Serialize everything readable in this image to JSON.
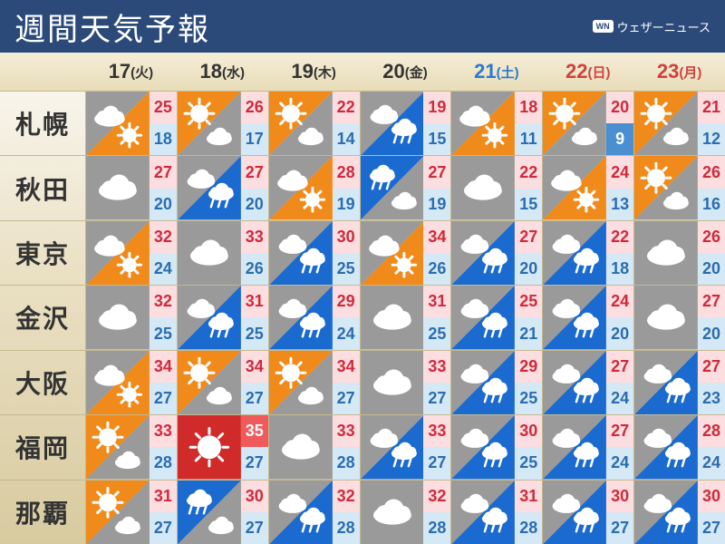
{
  "title": "週間天気予報",
  "brand": {
    "badge": "WN",
    "text": "ウェザーニュース"
  },
  "colors": {
    "header_bg": "#2b4a7a",
    "bg_gradient_top": "#ffffff",
    "bg_gradient_mid": "#eae0c4",
    "bg_gradient_bot": "#d8cba0",
    "grid_line": "#c5b98f",
    "hi_bg": "#fcdde0",
    "hi_text": "#d02a3a",
    "lo_bg": "#d5e8f5",
    "lo_text": "#2a6db0",
    "sat": "#2a7ad0",
    "sun": "#d04040",
    "cloud": "#9a9a9a",
    "sunny": "#f08a1a",
    "rain": "#1a6ad0",
    "hot_red": "#d02a2a"
  },
  "days": [
    {
      "num": "17",
      "dow": "(火)",
      "type": "weekday"
    },
    {
      "num": "18",
      "dow": "(水)",
      "type": "weekday"
    },
    {
      "num": "19",
      "dow": "(木)",
      "type": "weekday"
    },
    {
      "num": "20",
      "dow": "(金)",
      "type": "weekday"
    },
    {
      "num": "21",
      "dow": "(土)",
      "type": "sat"
    },
    {
      "num": "22",
      "dow": "(日)",
      "type": "sun"
    },
    {
      "num": "23",
      "dow": "(月)",
      "type": "sun"
    }
  ],
  "cities": [
    "札幌",
    "秋田",
    "東京",
    "金沢",
    "大阪",
    "福岡",
    "那覇"
  ],
  "forecast": [
    [
      {
        "w": "cloud_sun",
        "hi": 25,
        "lo": 18
      },
      {
        "w": "sun_cloud",
        "hi": 26,
        "lo": 17
      },
      {
        "w": "sun_cloud",
        "hi": 22,
        "lo": 14
      },
      {
        "w": "cloud_rain",
        "hi": 19,
        "lo": 15
      },
      {
        "w": "cloud_sun",
        "hi": 18,
        "lo": 11
      },
      {
        "w": "sun_cloud",
        "hi": 20,
        "lo": 9
      },
      {
        "w": "sun_cloud",
        "hi": 21,
        "lo": 12
      }
    ],
    [
      {
        "w": "cloud",
        "hi": 27,
        "lo": 20
      },
      {
        "w": "cloud_rain",
        "hi": 27,
        "lo": 20
      },
      {
        "w": "cloud_sun",
        "hi": 28,
        "lo": 19
      },
      {
        "w": "rain_cloud",
        "hi": 27,
        "lo": 19
      },
      {
        "w": "cloud",
        "hi": 22,
        "lo": 15
      },
      {
        "w": "cloud_sun",
        "hi": 24,
        "lo": 13
      },
      {
        "w": "sun_cloud",
        "hi": 26,
        "lo": 16
      }
    ],
    [
      {
        "w": "cloud_sun",
        "hi": 32,
        "lo": 24
      },
      {
        "w": "cloud",
        "hi": 33,
        "lo": 26
      },
      {
        "w": "cloud_rain",
        "hi": 30,
        "lo": 25
      },
      {
        "w": "cloud_sun",
        "hi": 34,
        "lo": 26
      },
      {
        "w": "cloud_rain",
        "hi": 27,
        "lo": 20
      },
      {
        "w": "cloud_rain",
        "hi": 22,
        "lo": 18
      },
      {
        "w": "cloud",
        "hi": 26,
        "lo": 20
      }
    ],
    [
      {
        "w": "cloud",
        "hi": 32,
        "lo": 25
      },
      {
        "w": "cloud_rain",
        "hi": 31,
        "lo": 25
      },
      {
        "w": "cloud_rain",
        "hi": 29,
        "lo": 24
      },
      {
        "w": "cloud",
        "hi": 31,
        "lo": 25
      },
      {
        "w": "cloud_rain",
        "hi": 25,
        "lo": 21
      },
      {
        "w": "cloud_rain",
        "hi": 24,
        "lo": 20
      },
      {
        "w": "cloud",
        "hi": 27,
        "lo": 20
      }
    ],
    [
      {
        "w": "cloud_sun",
        "hi": 34,
        "lo": 27
      },
      {
        "w": "sun_cloud",
        "hi": 34,
        "lo": 27
      },
      {
        "w": "sun_cloud",
        "hi": 34,
        "lo": 27
      },
      {
        "w": "cloud",
        "hi": 33,
        "lo": 27
      },
      {
        "w": "cloud_rain",
        "hi": 29,
        "lo": 25
      },
      {
        "w": "cloud_rain",
        "hi": 27,
        "lo": 24
      },
      {
        "w": "cloud_rain",
        "hi": 27,
        "lo": 23
      }
    ],
    [
      {
        "w": "sun_cloud",
        "hi": 33,
        "lo": 28
      },
      {
        "w": "hot",
        "hi": 35,
        "lo": 27
      },
      {
        "w": "cloud",
        "hi": 33,
        "lo": 28
      },
      {
        "w": "cloud_rain",
        "hi": 33,
        "lo": 27
      },
      {
        "w": "cloud_rain",
        "hi": 30,
        "lo": 25
      },
      {
        "w": "cloud_rain",
        "hi": 27,
        "lo": 24
      },
      {
        "w": "cloud_rain",
        "hi": 28,
        "lo": 24
      }
    ],
    [
      {
        "w": "sun_cloud",
        "hi": 31,
        "lo": 27
      },
      {
        "w": "rain_cloud",
        "hi": 30,
        "lo": 27
      },
      {
        "w": "cloud_rain",
        "hi": 32,
        "lo": 28
      },
      {
        "w": "cloud",
        "hi": 32,
        "lo": 28
      },
      {
        "w": "cloud_rain",
        "hi": 31,
        "lo": 28
      },
      {
        "w": "cloud_rain",
        "hi": 30,
        "lo": 27
      },
      {
        "w": "cloud_rain",
        "hi": 30,
        "lo": 27
      }
    ]
  ],
  "hi_hot_threshold": 35,
  "lo_cold_threshold": 9
}
